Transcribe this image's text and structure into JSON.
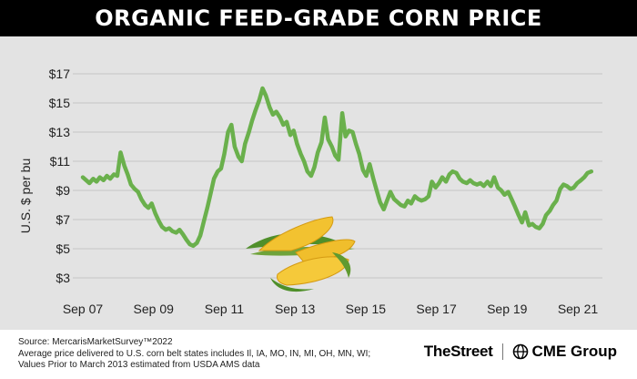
{
  "header": {
    "title": "ORGANIC FEED-GRADE CORN PRICE"
  },
  "chart_data": {
    "type": "line",
    "title": "ORGANIC FEED-GRADE CORN PRICE",
    "ylabel": "U.S. $ per bu",
    "xlabel": "",
    "ylim": [
      2,
      18
    ],
    "grid": true,
    "line_color": "#6ab04c",
    "y_ticks": [
      3,
      5,
      7,
      9,
      11,
      13,
      15,
      17
    ],
    "y_tick_labels": [
      "$3",
      "$5",
      "$7",
      "$9",
      "$11",
      "$13",
      "$15",
      "$17"
    ],
    "x_ticks": [
      {
        "label": "Sep 07",
        "t": 2007.67
      },
      {
        "label": "Sep 09",
        "t": 2009.67
      },
      {
        "label": "Sep 11",
        "t": 2011.67
      },
      {
        "label": "Sep 13",
        "t": 2013.67
      },
      {
        "label": "Sep 15",
        "t": 2015.67
      },
      {
        "label": "Sep 17",
        "t": 2017.67
      },
      {
        "label": "Sep 19",
        "t": 2019.67
      },
      {
        "label": "Sep 21",
        "t": 2021.67
      }
    ],
    "series": [
      {
        "points": [
          [
            2007.67,
            9.9
          ],
          [
            2007.83,
            9.5
          ],
          [
            2007.92,
            9.8
          ],
          [
            2008.0,
            9.6
          ],
          [
            2008.08,
            9.9
          ],
          [
            2008.17,
            9.7
          ],
          [
            2008.25,
            10.0
          ],
          [
            2008.33,
            9.8
          ],
          [
            2008.42,
            10.1
          ],
          [
            2008.5,
            10.0
          ],
          [
            2008.58,
            11.6
          ],
          [
            2008.67,
            10.7
          ],
          [
            2008.75,
            10.1
          ],
          [
            2008.83,
            9.4
          ],
          [
            2008.92,
            9.1
          ],
          [
            2009.0,
            8.9
          ],
          [
            2009.08,
            8.4
          ],
          [
            2009.17,
            8.0
          ],
          [
            2009.25,
            7.8
          ],
          [
            2009.33,
            8.1
          ],
          [
            2009.42,
            7.4
          ],
          [
            2009.5,
            6.9
          ],
          [
            2009.58,
            6.5
          ],
          [
            2009.67,
            6.3
          ],
          [
            2009.75,
            6.4
          ],
          [
            2009.83,
            6.2
          ],
          [
            2009.92,
            6.1
          ],
          [
            2010.0,
            6.3
          ],
          [
            2010.08,
            6.0
          ],
          [
            2010.17,
            5.6
          ],
          [
            2010.25,
            5.3
          ],
          [
            2010.33,
            5.2
          ],
          [
            2010.42,
            5.4
          ],
          [
            2010.5,
            5.9
          ],
          [
            2010.58,
            6.8
          ],
          [
            2010.67,
            7.8
          ],
          [
            2010.75,
            8.8
          ],
          [
            2010.83,
            9.8
          ],
          [
            2010.92,
            10.3
          ],
          [
            2011.0,
            10.5
          ],
          [
            2011.08,
            11.5
          ],
          [
            2011.17,
            13.0
          ],
          [
            2011.25,
            13.5
          ],
          [
            2011.33,
            12.0
          ],
          [
            2011.42,
            11.3
          ],
          [
            2011.5,
            11.0
          ],
          [
            2011.58,
            12.2
          ],
          [
            2011.67,
            13.0
          ],
          [
            2011.75,
            13.8
          ],
          [
            2011.83,
            14.5
          ],
          [
            2011.92,
            15.2
          ],
          [
            2012.0,
            16.0
          ],
          [
            2012.08,
            15.5
          ],
          [
            2012.17,
            14.7
          ],
          [
            2012.25,
            14.2
          ],
          [
            2012.33,
            14.4
          ],
          [
            2012.42,
            14.0
          ],
          [
            2012.5,
            13.5
          ],
          [
            2012.58,
            13.7
          ],
          [
            2012.67,
            12.8
          ],
          [
            2012.75,
            13.1
          ],
          [
            2012.83,
            12.2
          ],
          [
            2012.92,
            11.5
          ],
          [
            2013.0,
            11.0
          ],
          [
            2013.08,
            10.3
          ],
          [
            2013.17,
            10.0
          ],
          [
            2013.25,
            10.6
          ],
          [
            2013.33,
            11.6
          ],
          [
            2013.42,
            12.3
          ],
          [
            2013.5,
            14.0
          ],
          [
            2013.58,
            12.5
          ],
          [
            2013.67,
            12.0
          ],
          [
            2013.75,
            11.4
          ],
          [
            2013.83,
            11.1
          ],
          [
            2013.92,
            14.3
          ],
          [
            2014.0,
            12.7
          ],
          [
            2014.08,
            13.1
          ],
          [
            2014.17,
            13.0
          ],
          [
            2014.25,
            12.2
          ],
          [
            2014.33,
            11.5
          ],
          [
            2014.42,
            10.4
          ],
          [
            2014.5,
            10.0
          ],
          [
            2014.58,
            10.8
          ],
          [
            2014.67,
            9.8
          ],
          [
            2014.75,
            9.0
          ],
          [
            2014.83,
            8.2
          ],
          [
            2014.92,
            7.7
          ],
          [
            2015.0,
            8.3
          ],
          [
            2015.08,
            8.9
          ],
          [
            2015.17,
            8.4
          ],
          [
            2015.25,
            8.2
          ],
          [
            2015.33,
            8.0
          ],
          [
            2015.42,
            7.9
          ],
          [
            2015.5,
            8.3
          ],
          [
            2015.58,
            8.1
          ],
          [
            2015.67,
            8.6
          ],
          [
            2015.75,
            8.4
          ],
          [
            2015.83,
            8.3
          ],
          [
            2015.92,
            8.4
          ],
          [
            2016.0,
            8.6
          ],
          [
            2016.08,
            9.6
          ],
          [
            2016.17,
            9.2
          ],
          [
            2016.25,
            9.5
          ],
          [
            2016.33,
            9.9
          ],
          [
            2016.42,
            9.6
          ],
          [
            2016.5,
            10.1
          ],
          [
            2016.58,
            10.3
          ],
          [
            2016.67,
            10.2
          ],
          [
            2016.75,
            9.8
          ],
          [
            2016.83,
            9.6
          ],
          [
            2016.92,
            9.5
          ],
          [
            2017.0,
            9.7
          ],
          [
            2017.08,
            9.5
          ],
          [
            2017.17,
            9.4
          ],
          [
            2017.25,
            9.5
          ],
          [
            2017.33,
            9.3
          ],
          [
            2017.42,
            9.6
          ],
          [
            2017.5,
            9.3
          ],
          [
            2017.58,
            9.9
          ],
          [
            2017.67,
            9.2
          ],
          [
            2017.75,
            9.0
          ],
          [
            2017.83,
            8.7
          ],
          [
            2017.92,
            8.9
          ],
          [
            2018.0,
            8.4
          ],
          [
            2018.08,
            7.9
          ],
          [
            2018.17,
            7.3
          ],
          [
            2018.25,
            6.8
          ],
          [
            2018.33,
            7.5
          ],
          [
            2018.42,
            6.6
          ],
          [
            2018.5,
            6.7
          ],
          [
            2018.58,
            6.5
          ],
          [
            2018.67,
            6.4
          ],
          [
            2018.75,
            6.7
          ],
          [
            2018.83,
            7.3
          ],
          [
            2018.92,
            7.6
          ],
          [
            2019.0,
            8.0
          ],
          [
            2019.08,
            8.3
          ],
          [
            2019.17,
            9.1
          ],
          [
            2019.25,
            9.4
          ],
          [
            2019.33,
            9.3
          ],
          [
            2019.42,
            9.1
          ],
          [
            2019.5,
            9.2
          ],
          [
            2019.58,
            9.5
          ],
          [
            2019.67,
            9.7
          ],
          [
            2019.75,
            9.9
          ],
          [
            2019.83,
            10.2
          ],
          [
            2019.92,
            10.3
          ]
        ]
      }
    ],
    "x_domain": [
      2007.45,
      2020.05
    ]
  },
  "footer": {
    "notes": [
      "Source: MercarisMarketSurvey™2022",
      "Average price delivered to U.S. corn belt states includes Il, IA, MO, IN, MI, OH, MN, WI;",
      "Values Prior to March 2013 estimated from USDA AMS data"
    ],
    "brand_1": "TheStreet",
    "brand_2": "CME Group"
  }
}
